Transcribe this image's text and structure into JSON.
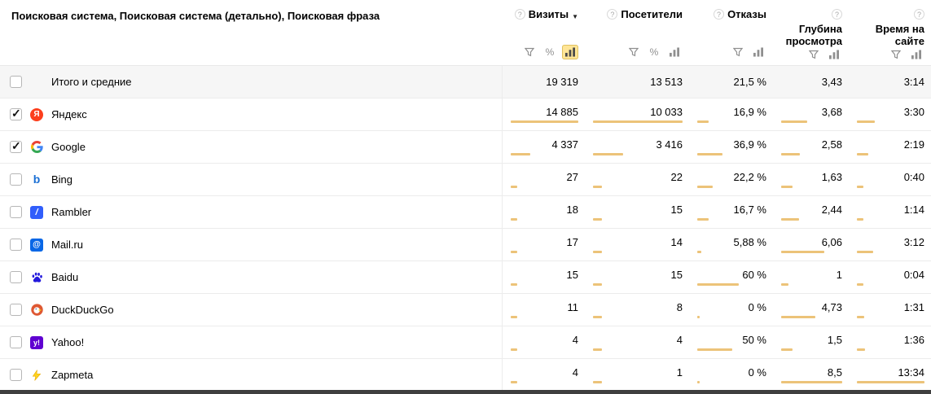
{
  "header": {
    "dimension_title": "Поисковая система, Поисковая система (детально), Поисковая фраза",
    "metrics": [
      {
        "label": "Визиты",
        "sorted": true,
        "tools": [
          "filter",
          "percent",
          "bars"
        ],
        "selected_tool": "bars"
      },
      {
        "label": "Посетители",
        "sorted": false,
        "tools": [
          "filter",
          "percent",
          "bars"
        ],
        "selected_tool": null
      },
      {
        "label": "Отказы",
        "sorted": false,
        "tools": [
          "filter",
          "bars"
        ],
        "selected_tool": null
      },
      {
        "label": "Глубина просмотра",
        "sorted": false,
        "tools": [
          "filter",
          "bars"
        ],
        "selected_tool": null
      },
      {
        "label": "Время на сайте",
        "sorted": false,
        "tools": [
          "filter",
          "bars"
        ],
        "selected_tool": null
      }
    ]
  },
  "rows": [
    {
      "label": "Итого и средние",
      "is_totals": true,
      "checked": false,
      "icon": null,
      "values": [
        "19 319",
        "13 513",
        "21,5 %",
        "3,43",
        "3:14"
      ],
      "bar_pcts": null
    },
    {
      "label": "Яндекс",
      "is_totals": false,
      "checked": true,
      "icon": "yandex-icon",
      "values": [
        "14 885",
        "10 033",
        "16,9 %",
        "3,68",
        "3:30"
      ],
      "bar_pcts": [
        100,
        100,
        17,
        43,
        26
      ]
    },
    {
      "label": "Google",
      "is_totals": false,
      "checked": true,
      "icon": "google-icon",
      "values": [
        "4 337",
        "3 416",
        "36,9 %",
        "2,58",
        "2:19"
      ],
      "bar_pcts": [
        29,
        34,
        37,
        30,
        17
      ]
    },
    {
      "label": "Bing",
      "is_totals": false,
      "checked": false,
      "icon": "bing-icon",
      "values": [
        "27",
        "22",
        "22,2 %",
        "1,63",
        "0:40"
      ],
      "bar_pcts": [
        10,
        10,
        22,
        19,
        10
      ]
    },
    {
      "label": "Rambler",
      "is_totals": false,
      "checked": false,
      "icon": "rambler-icon",
      "values": [
        "18",
        "15",
        "16,7 %",
        "2,44",
        "1:14"
      ],
      "bar_pcts": [
        10,
        10,
        17,
        29,
        10
      ]
    },
    {
      "label": "Mail.ru",
      "is_totals": false,
      "checked": false,
      "icon": "mailru-icon",
      "values": [
        "17",
        "14",
        "5,88 %",
        "6,06",
        "3:12"
      ],
      "bar_pcts": [
        10,
        10,
        6,
        71,
        24
      ]
    },
    {
      "label": "Baidu",
      "is_totals": false,
      "checked": false,
      "icon": "baidu-icon",
      "values": [
        "15",
        "15",
        "60 %",
        "1",
        "0:04"
      ],
      "bar_pcts": [
        10,
        10,
        60,
        12,
        10
      ]
    },
    {
      "label": "DuckDuckGo",
      "is_totals": false,
      "checked": false,
      "icon": "duckduckgo-icon",
      "values": [
        "11",
        "8",
        "0 %",
        "4,73",
        "1:31"
      ],
      "bar_pcts": [
        10,
        10,
        3,
        56,
        11
      ]
    },
    {
      "label": "Yahoo!",
      "is_totals": false,
      "checked": false,
      "icon": "yahoo-icon",
      "values": [
        "4",
        "4",
        "50 %",
        "1,5",
        "1:36"
      ],
      "bar_pcts": [
        10,
        10,
        50,
        18,
        12
      ]
    },
    {
      "label": "Zapmeta",
      "is_totals": false,
      "checked": false,
      "icon": "zapmeta-icon",
      "values": [
        "4",
        "1",
        "0 %",
        "8,5",
        "13:34"
      ],
      "bar_pcts": [
        10,
        10,
        3,
        100,
        100
      ]
    }
  ],
  "colors": {
    "bar_fill": "#ecc379",
    "selected_tool_bg": "#ffe596",
    "totals_row_bg": "#f6f6f6",
    "row_border": "#ececec"
  }
}
